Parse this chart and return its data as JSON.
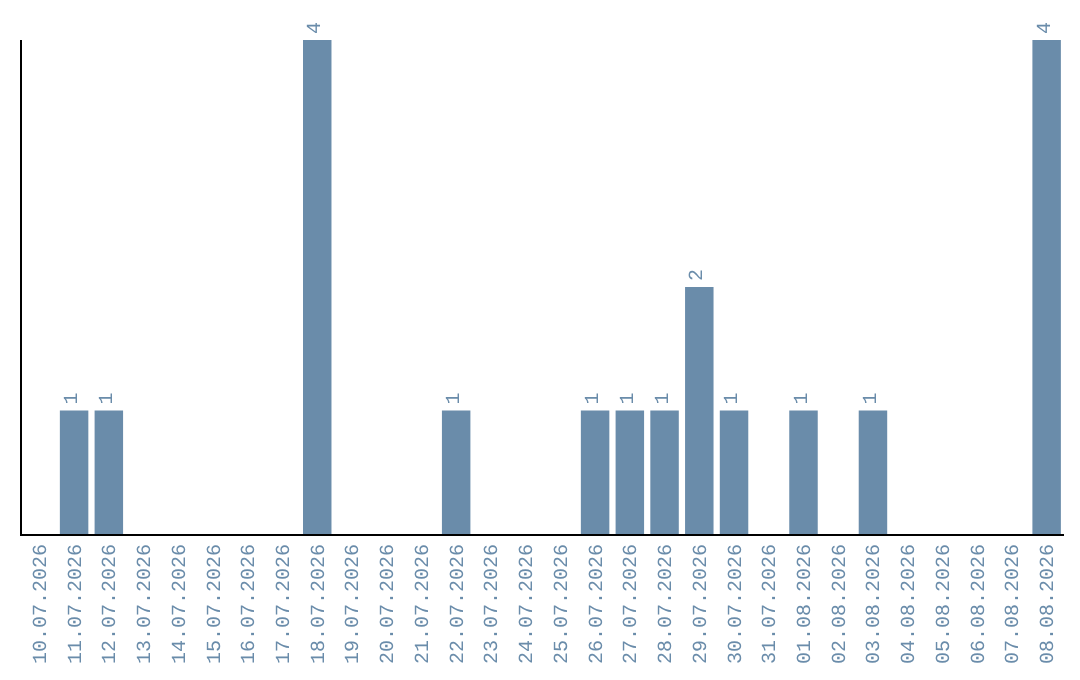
{
  "chart_data": {
    "type": "bar",
    "categories": [
      "10.07.2026",
      "11.07.2026",
      "12.07.2026",
      "13.07.2026",
      "14.07.2026",
      "15.07.2026",
      "16.07.2026",
      "17.07.2026",
      "18.07.2026",
      "19.07.2026",
      "20.07.2026",
      "21.07.2026",
      "22.07.2026",
      "23.07.2026",
      "24.07.2026",
      "25.07.2026",
      "26.07.2026",
      "27.07.2026",
      "28.07.2026",
      "29.07.2026",
      "30.07.2026",
      "31.07.2026",
      "01.08.2026",
      "02.08.2026",
      "03.08.2026",
      "04.08.2026",
      "05.08.2026",
      "06.08.2026",
      "07.08.2026",
      "08.08.2026"
    ],
    "values": [
      0,
      1,
      1,
      0,
      0,
      0,
      0,
      0,
      4,
      0,
      0,
      0,
      1,
      0,
      0,
      0,
      1,
      1,
      1,
      2,
      1,
      0,
      1,
      0,
      1,
      0,
      0,
      0,
      0,
      4
    ],
    "value_labels": [
      null,
      "1",
      "1",
      null,
      null,
      null,
      null,
      null,
      "4",
      null,
      null,
      null,
      "1",
      null,
      null,
      null,
      "1",
      "1",
      "1",
      "2",
      "1",
      null,
      "1",
      null,
      "1",
      null,
      null,
      null,
      null,
      "4"
    ],
    "color": "#6a8caa",
    "ylim": [
      0,
      4
    ],
    "tick_labels": "x"
  }
}
